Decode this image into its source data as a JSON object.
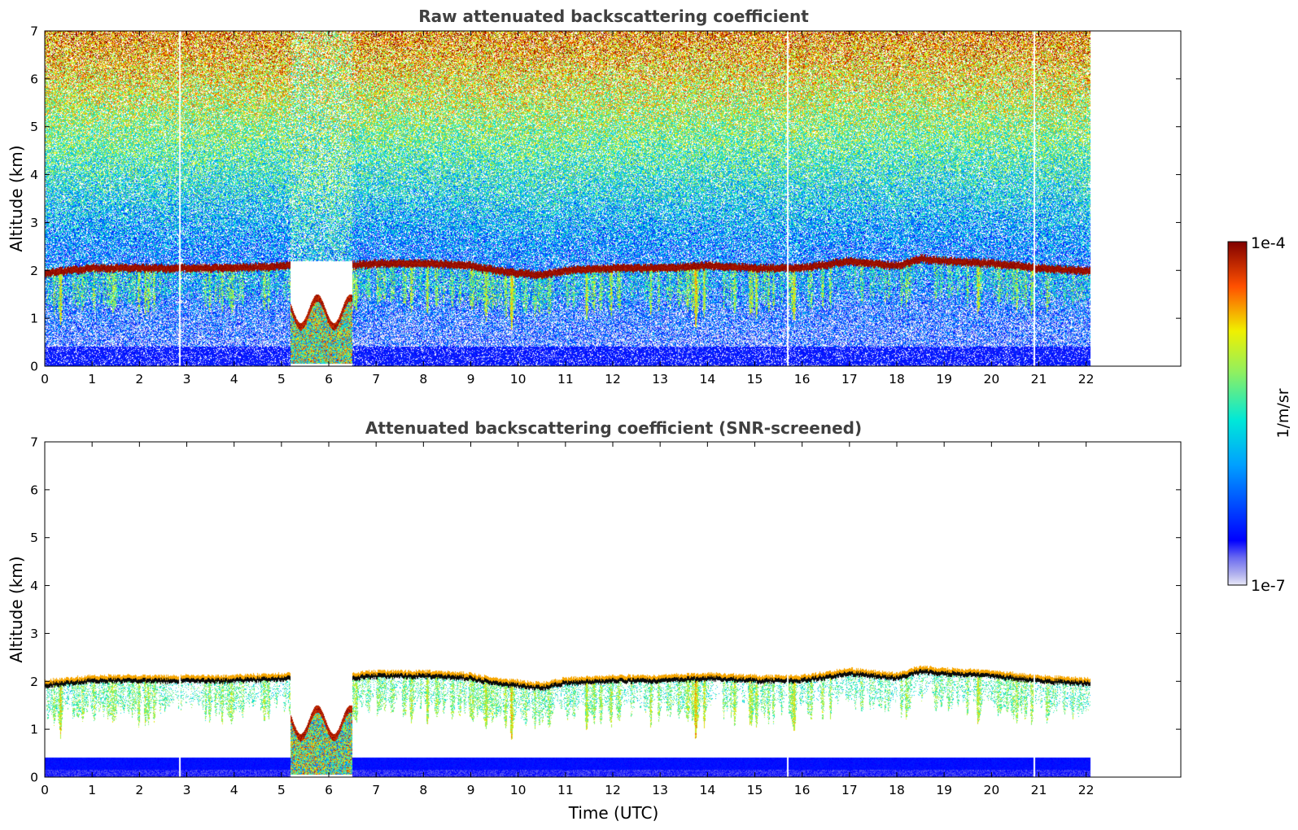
{
  "chart_data": [
    {
      "type": "heatmap",
      "title": "Raw attenuated backscattering coefficient",
      "xlabel": "",
      "ylabel": "Altitude (km)",
      "xlim": [
        0,
        24
      ],
      "ylim": [
        0,
        7
      ],
      "x_ticks": [
        "0",
        "1",
        "2",
        "3",
        "4",
        "5",
        "6",
        "7",
        "8",
        "9",
        "10",
        "11",
        "12",
        "13",
        "14",
        "15",
        "16",
        "17",
        "18",
        "19",
        "20",
        "21",
        "22"
      ],
      "y_ticks": [
        "0",
        "1",
        "2",
        "3",
        "4",
        "5",
        "6",
        "7"
      ],
      "data_extent_hours": [
        0,
        22.1
      ],
      "features": {
        "cloud_layer_top_km": [
          [
            0,
            1.95
          ],
          [
            0.5,
            2.0
          ],
          [
            1,
            2.05
          ],
          [
            2,
            2.05
          ],
          [
            3,
            2.05
          ],
          [
            4,
            2.05
          ],
          [
            5.1,
            2.1
          ],
          [
            6.4,
            2.1
          ],
          [
            7,
            2.15
          ],
          [
            8,
            2.15
          ],
          [
            9,
            2.1
          ],
          [
            9.5,
            2.0
          ],
          [
            10.5,
            1.9
          ],
          [
            11,
            2.0
          ],
          [
            12,
            2.05
          ],
          [
            13,
            2.05
          ],
          [
            14,
            2.1
          ],
          [
            15,
            2.05
          ],
          [
            16,
            2.05
          ],
          [
            17,
            2.2
          ],
          [
            18,
            2.1
          ],
          [
            18.5,
            2.25
          ],
          [
            19,
            2.2
          ],
          [
            20,
            2.15
          ],
          [
            21,
            2.05
          ],
          [
            21.9,
            2.0
          ]
        ],
        "data_gaps_hours": [
          2.85,
          15.7,
          20.9
        ],
        "low_cloud_hours": [
          5.2,
          6.5
        ],
        "noise": "high"
      }
    },
    {
      "type": "heatmap",
      "title": "Attenuated backscattering coefficient (SNR-screened)",
      "xlabel": "Time (UTC)",
      "ylabel": "Altitude (km)",
      "xlim": [
        0,
        24
      ],
      "ylim": [
        0,
        7
      ],
      "x_ticks": [
        "0",
        "1",
        "2",
        "3",
        "4",
        "5",
        "6",
        "7",
        "8",
        "9",
        "10",
        "11",
        "12",
        "13",
        "14",
        "15",
        "16",
        "17",
        "18",
        "19",
        "20",
        "21",
        "22"
      ],
      "y_ticks": [
        "0",
        "1",
        "2",
        "3",
        "4",
        "5",
        "6",
        "7"
      ],
      "data_extent_hours": [
        0,
        22.1
      ],
      "features": {
        "cloud_layer_top_km": [
          [
            0,
            1.95
          ],
          [
            0.5,
            2.0
          ],
          [
            1,
            2.05
          ],
          [
            2,
            2.05
          ],
          [
            3,
            2.05
          ],
          [
            4,
            2.05
          ],
          [
            5.1,
            2.1
          ],
          [
            6.4,
            2.1
          ],
          [
            7,
            2.15
          ],
          [
            8,
            2.15
          ],
          [
            9,
            2.1
          ],
          [
            9.5,
            2.0
          ],
          [
            10.5,
            1.9
          ],
          [
            11,
            2.0
          ],
          [
            12,
            2.05
          ],
          [
            13,
            2.05
          ],
          [
            14,
            2.1
          ],
          [
            15,
            2.05
          ],
          [
            16,
            2.05
          ],
          [
            17,
            2.2
          ],
          [
            18,
            2.1
          ],
          [
            18.5,
            2.25
          ],
          [
            19,
            2.2
          ],
          [
            20,
            2.15
          ],
          [
            21,
            2.05
          ],
          [
            21.9,
            2.0
          ]
        ],
        "data_gaps_hours": [
          2.85,
          15.7,
          20.9
        ],
        "low_cloud_hours": [
          5.2,
          6.5
        ],
        "noise": "screened"
      }
    }
  ],
  "colorbar": {
    "max_label": "1e-4",
    "min_label": "1e-7",
    "unit_label": "1/m/sr",
    "scale": "log",
    "colormap": "jet"
  }
}
